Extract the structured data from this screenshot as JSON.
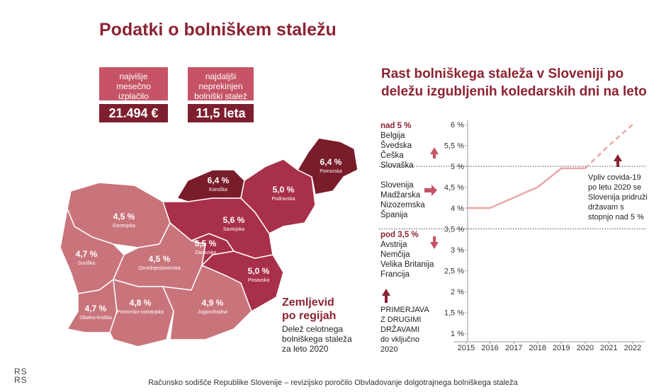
{
  "header": {
    "title": "Podatki o bolniškem staležu"
  },
  "kpis": [
    {
      "label_lines": [
        "najvišje",
        "mesečno",
        "izplačilo"
      ],
      "value": "21.494 €"
    },
    {
      "label_lines": [
        "najdaljši",
        "neprekinjen",
        "bolniški stalež"
      ],
      "value": "11,5 leta"
    }
  ],
  "map": {
    "title": "Zemljevid po regijah",
    "description": "Delež celotnega bolniškega staleža za leto 2020",
    "regions": [
      {
        "name": "Gorenjska",
        "value": 4.5,
        "label": "4,5 %",
        "color": "#c9747b"
      },
      {
        "name": "Goriška",
        "value": 4.7,
        "label": "4,7 %",
        "color": "#c9747b"
      },
      {
        "name": "Osrednjeslovenska",
        "value": 4.5,
        "label": "4,5 %",
        "color": "#c9747b"
      },
      {
        "name": "Obalno-kraška",
        "value": 4.7,
        "label": "4,7 %",
        "color": "#c9747b"
      },
      {
        "name": "Primorsko-notranjska",
        "value": 4.8,
        "label": "4,8 %",
        "color": "#c9747b"
      },
      {
        "name": "Jugovzhodna",
        "value": 4.9,
        "label": "4,9 %",
        "color": "#c9747b"
      },
      {
        "name": "Posavska",
        "value": 5.0,
        "label": "5,0 %",
        "color": "#a9304a"
      },
      {
        "name": "Zasavska",
        "value": 5.5,
        "label": "5,5 %",
        "color": "#a9304a"
      },
      {
        "name": "Savinjska",
        "value": 5.6,
        "label": "5,6 %",
        "color": "#a9304a"
      },
      {
        "name": "Koroška",
        "value": 6.4,
        "label": "6,4 %",
        "color": "#7a1d2b"
      },
      {
        "name": "Podravska",
        "value": 5.0,
        "label": "5,0 %",
        "color": "#a9304a"
      },
      {
        "name": "Pomurska",
        "value": 6.4,
        "label": "6,4 %",
        "color": "#7a1d2b"
      }
    ]
  },
  "chart_data": {
    "type": "line",
    "title": "Rast bolniškega staleža v Sloveniji po deležu izgubljenih koledarskih dni na leto",
    "x": [
      2015,
      2016,
      2017,
      2018,
      2019,
      2020,
      2021,
      2022
    ],
    "series": [
      {
        "color": "#eaa7a7",
        "style": "solid",
        "values": [
          4.0,
          4.0,
          4.25,
          4.5,
          4.95,
          4.95,
          null,
          null
        ]
      },
      {
        "color": "#eaa7a7",
        "style": "dashed",
        "values": [
          null,
          null,
          null,
          null,
          null,
          4.95,
          5.5,
          6.0
        ]
      }
    ],
    "xlim": [
      2015,
      2022
    ],
    "ylim": [
      0.8,
      6.1
    ],
    "xticks": [
      2015,
      2016,
      2017,
      2018,
      2019,
      2020,
      2021,
      2022
    ],
    "yticks": [
      {
        "value": 1,
        "label": "1 %"
      },
      {
        "value": 1.5,
        "label": "1,5 %"
      },
      {
        "value": 2,
        "label": "2 %"
      },
      {
        "value": 2.5,
        "label": "2,5 %"
      },
      {
        "value": 3,
        "label": "3 %"
      },
      {
        "value": 3.5,
        "label": "3,5 %"
      },
      {
        "value": 4,
        "label": "4 %"
      },
      {
        "value": 4.5,
        "label": "4,5 %"
      },
      {
        "value": 5,
        "label": "5 %"
      },
      {
        "value": 5.5,
        "label": "5,5 %"
      },
      {
        "value": 6,
        "label": "6 %"
      }
    ],
    "thresholds": [
      5,
      3.5
    ],
    "groups": [
      {
        "heading": "nad 5 %",
        "countries": [
          "Belgija",
          "Švedska",
          "Češka",
          "Slovaška"
        ]
      },
      {
        "countries": [
          "Slovenija",
          "Madžarska",
          "Nizozemska",
          "Španija"
        ]
      },
      {
        "heading": "pod 3,5 %",
        "countries": [
          "Avstrija",
          "Nemčija",
          "Velika Britanija",
          "Francija"
        ]
      }
    ],
    "annotation": "Vpliv covida-19 po letu 2020 se Slovenija pridruži državam s stopnjo nad 5 %",
    "legend_note": "PRIMERJAVA Z DRUGIMI DRŽAVAMI",
    "legend_note_sub": "do vključno 2020"
  },
  "footer": {
    "logo": "RS RS",
    "text": "Računsko sodišče Republike Slovenije – revizijsko poročilo Obvladovanje dolgotrajnega bolniškega staleža"
  }
}
